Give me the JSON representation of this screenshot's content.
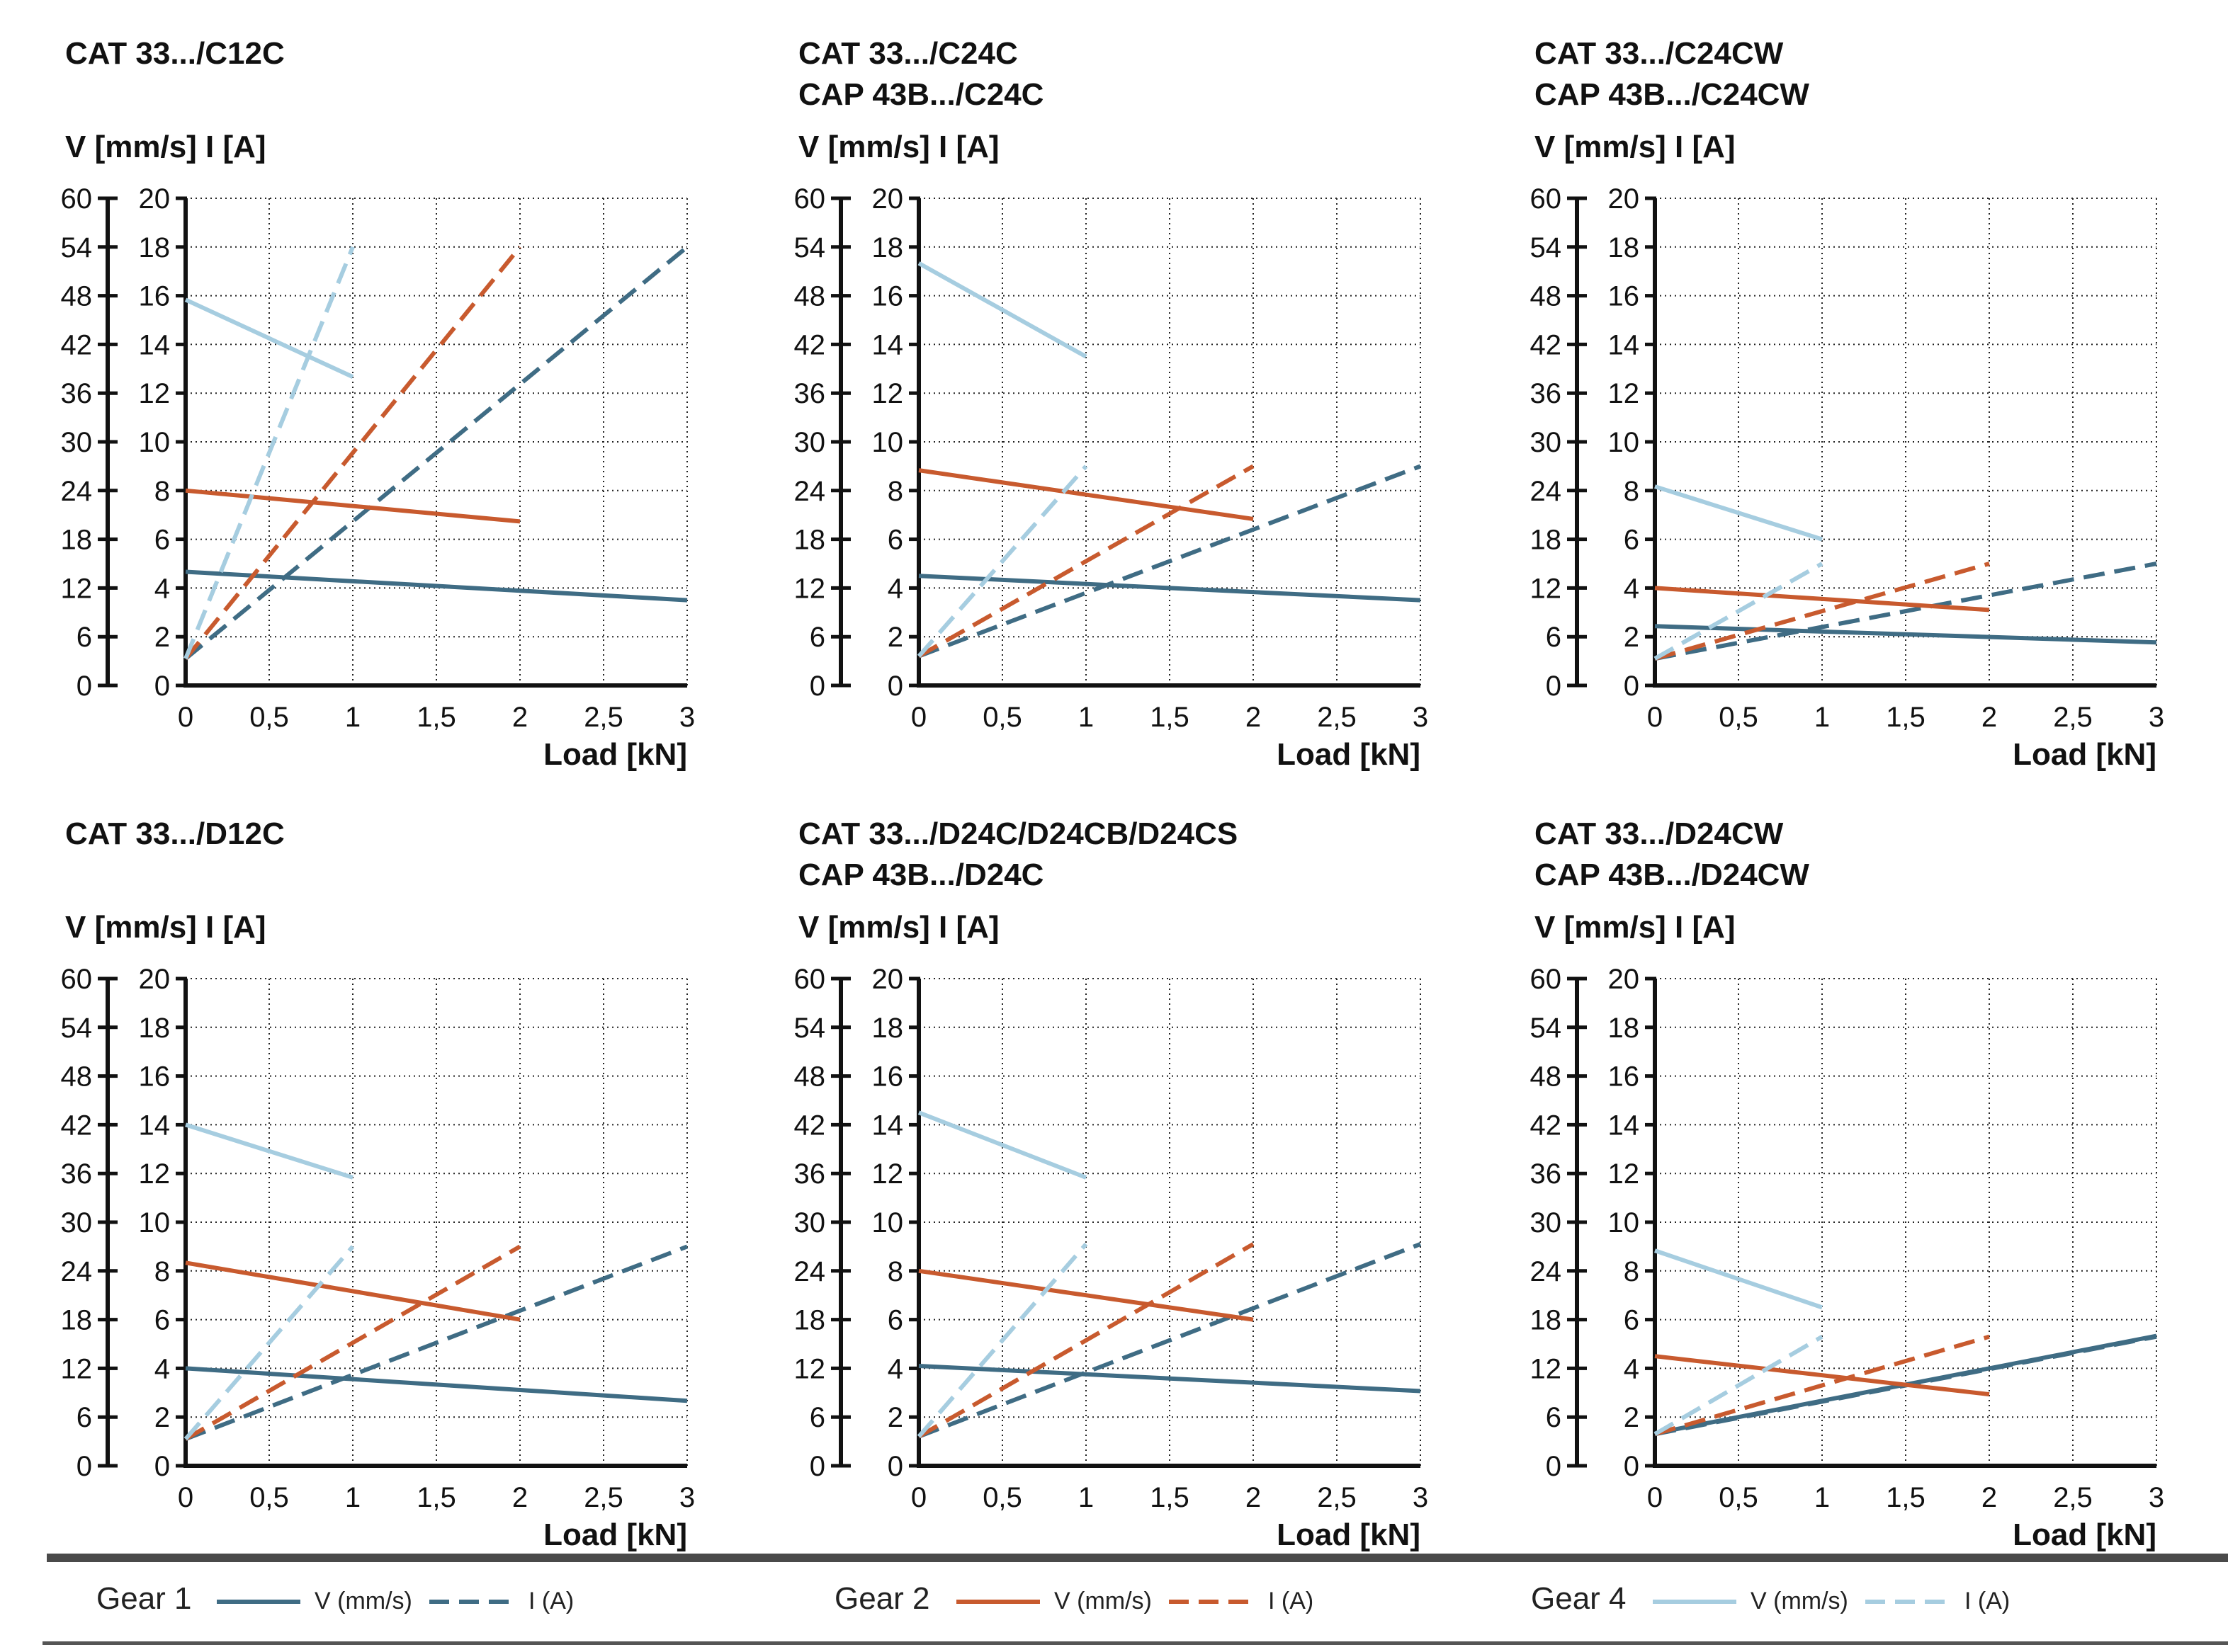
{
  "colors": {
    "gear1": "#3f6c84",
    "gear2": "#c85a2e",
    "gear4": "#a6cde0"
  },
  "legend": {
    "groups": [
      {
        "gear": "Gear 1",
        "v_label": "V (mm/s)",
        "i_label": "I (A)",
        "color_key": "gear1"
      },
      {
        "gear": "Gear 2",
        "v_label": "V (mm/s)",
        "i_label": "I (A)",
        "color_key": "gear2"
      },
      {
        "gear": "Gear 4",
        "v_label": "V (mm/s)",
        "i_label": "I (A)",
        "color_key": "gear4"
      }
    ]
  },
  "chart_data": [
    {
      "type": "line",
      "title": [
        "CAT 33.../C12C"
      ],
      "ylabel": "V [mm/s]  I [A]",
      "xlabel": "Load [kN]",
      "x_ticks": [
        "0",
        "0,5",
        "1",
        "1,5",
        "2",
        "2,5",
        "3"
      ],
      "xlim": [
        0,
        3
      ],
      "v_ticks": [
        "0",
        "6",
        "12",
        "18",
        "24",
        "30",
        "36",
        "42",
        "48",
        "54",
        "60"
      ],
      "v_lim": [
        0,
        60
      ],
      "i_ticks": [
        "0",
        "2",
        "4",
        "6",
        "8",
        "10",
        "12",
        "14",
        "16",
        "18",
        "20"
      ],
      "i_lim": [
        0,
        20
      ],
      "grid": true,
      "series": [
        {
          "name": "Gear 1 V (mm/s)",
          "gear": "gear1",
          "kind": "V",
          "x": [
            0,
            3
          ],
          "y": [
            14,
            10.5
          ]
        },
        {
          "name": "Gear 1 I (A)",
          "gear": "gear1",
          "kind": "I",
          "x": [
            0,
            3
          ],
          "y": [
            1.1,
            18
          ]
        },
        {
          "name": "Gear 2 V (mm/s)",
          "gear": "gear2",
          "kind": "V",
          "x": [
            0,
            2
          ],
          "y": [
            24,
            20.2
          ]
        },
        {
          "name": "Gear 2 I (A)",
          "gear": "gear2",
          "kind": "I",
          "x": [
            0,
            2
          ],
          "y": [
            1.1,
            18
          ]
        },
        {
          "name": "Gear 4 V (mm/s)",
          "gear": "gear4",
          "kind": "V",
          "x": [
            0,
            1
          ],
          "y": [
            47.5,
            38
          ]
        },
        {
          "name": "Gear 4 I (A)",
          "gear": "gear4",
          "kind": "I",
          "x": [
            0,
            1
          ],
          "y": [
            1.1,
            18
          ]
        }
      ]
    },
    {
      "type": "line",
      "title": [
        "CAT 33.../C24C",
        "CAP 43B.../C24C"
      ],
      "ylabel": "V [mm/s]  I [A]",
      "xlabel": "Load [kN]",
      "x_ticks": [
        "0",
        "0,5",
        "1",
        "1,5",
        "2",
        "2,5",
        "3"
      ],
      "xlim": [
        0,
        3
      ],
      "v_ticks": [
        "0",
        "6",
        "12",
        "18",
        "24",
        "30",
        "36",
        "42",
        "48",
        "54",
        "60"
      ],
      "v_lim": [
        0,
        60
      ],
      "i_ticks": [
        "0",
        "2",
        "4",
        "6",
        "8",
        "10",
        "12",
        "14",
        "16",
        "18",
        "20"
      ],
      "i_lim": [
        0,
        20
      ],
      "grid": true,
      "series": [
        {
          "name": "Gear 1 V (mm/s)",
          "gear": "gear1",
          "kind": "V",
          "x": [
            0,
            3
          ],
          "y": [
            13.5,
            10.5
          ]
        },
        {
          "name": "Gear 1 I (A)",
          "gear": "gear1",
          "kind": "I",
          "x": [
            0,
            3
          ],
          "y": [
            1.2,
            9
          ]
        },
        {
          "name": "Gear 2 V (mm/s)",
          "gear": "gear2",
          "kind": "V",
          "x": [
            0,
            2
          ],
          "y": [
            26.5,
            20.5
          ]
        },
        {
          "name": "Gear 2 I (A)",
          "gear": "gear2",
          "kind": "I",
          "x": [
            0,
            2
          ],
          "y": [
            1.2,
            9
          ]
        },
        {
          "name": "Gear 4 V (mm/s)",
          "gear": "gear4",
          "kind": "V",
          "x": [
            0,
            1
          ],
          "y": [
            52,
            40.5
          ]
        },
        {
          "name": "Gear 4 I (A)",
          "gear": "gear4",
          "kind": "I",
          "x": [
            0,
            1
          ],
          "y": [
            1.2,
            9
          ]
        }
      ]
    },
    {
      "type": "line",
      "title": [
        "CAT 33.../C24CW",
        "CAP 43B.../C24CW"
      ],
      "ylabel": "V [mm/s]  I [A]",
      "xlabel": "Load [kN]",
      "x_ticks": [
        "0",
        "0,5",
        "1",
        "1,5",
        "2",
        "2,5",
        "3"
      ],
      "xlim": [
        0,
        3
      ],
      "v_ticks": [
        "0",
        "6",
        "12",
        "18",
        "24",
        "30",
        "36",
        "42",
        "48",
        "54",
        "60"
      ],
      "v_lim": [
        0,
        60
      ],
      "i_ticks": [
        "0",
        "2",
        "4",
        "6",
        "8",
        "10",
        "12",
        "14",
        "16",
        "18",
        "20"
      ],
      "i_lim": [
        0,
        20
      ],
      "grid": true,
      "series": [
        {
          "name": "Gear 1 V (mm/s)",
          "gear": "gear1",
          "kind": "V",
          "x": [
            0,
            3
          ],
          "y": [
            7.3,
            5.3
          ]
        },
        {
          "name": "Gear 1 I (A)",
          "gear": "gear1",
          "kind": "I",
          "x": [
            0,
            3
          ],
          "y": [
            1.1,
            5
          ]
        },
        {
          "name": "Gear 2 V (mm/s)",
          "gear": "gear2",
          "kind": "V",
          "x": [
            0,
            2
          ],
          "y": [
            12,
            9.3
          ]
        },
        {
          "name": "Gear 2 I (A)",
          "gear": "gear2",
          "kind": "I",
          "x": [
            0,
            2
          ],
          "y": [
            1.1,
            5
          ]
        },
        {
          "name": "Gear 4 V (mm/s)",
          "gear": "gear4",
          "kind": "V",
          "x": [
            0,
            1
          ],
          "y": [
            24.5,
            18
          ]
        },
        {
          "name": "Gear 4 I (A)",
          "gear": "gear4",
          "kind": "I",
          "x": [
            0,
            1
          ],
          "y": [
            1.1,
            5
          ]
        }
      ]
    },
    {
      "type": "line",
      "title": [
        "CAT 33.../D12C"
      ],
      "ylabel": "V [mm/s]  I [A]",
      "xlabel": "Load [kN]",
      "x_ticks": [
        "0",
        "0,5",
        "1",
        "1,5",
        "2",
        "2,5",
        "3"
      ],
      "xlim": [
        0,
        3
      ],
      "v_ticks": [
        "0",
        "6",
        "12",
        "18",
        "24",
        "30",
        "36",
        "42",
        "48",
        "54",
        "60"
      ],
      "v_lim": [
        0,
        60
      ],
      "i_ticks": [
        "0",
        "2",
        "4",
        "6",
        "8",
        "10",
        "12",
        "14",
        "16",
        "18",
        "20"
      ],
      "i_lim": [
        0,
        20
      ],
      "grid": true,
      "series": [
        {
          "name": "Gear 1 V (mm/s)",
          "gear": "gear1",
          "kind": "V",
          "x": [
            0,
            3
          ],
          "y": [
            12,
            8
          ]
        },
        {
          "name": "Gear 1 I (A)",
          "gear": "gear1",
          "kind": "I",
          "x": [
            0,
            3
          ],
          "y": [
            1.1,
            9
          ]
        },
        {
          "name": "Gear 2 V (mm/s)",
          "gear": "gear2",
          "kind": "V",
          "x": [
            0,
            2
          ],
          "y": [
            25,
            18
          ]
        },
        {
          "name": "Gear 2 I (A)",
          "gear": "gear2",
          "kind": "I",
          "x": [
            0,
            2
          ],
          "y": [
            1.1,
            9
          ]
        },
        {
          "name": "Gear 4 V (mm/s)",
          "gear": "gear4",
          "kind": "V",
          "x": [
            0,
            1
          ],
          "y": [
            42,
            35.5
          ]
        },
        {
          "name": "Gear 4 I (A)",
          "gear": "gear4",
          "kind": "I",
          "x": [
            0,
            1
          ],
          "y": [
            1.1,
            9
          ]
        }
      ]
    },
    {
      "type": "line",
      "title": [
        "CAT 33.../D24C/D24CB/D24CS",
        "CAP 43B.../D24C"
      ],
      "ylabel": "V [mm/s]  I [A]",
      "xlabel": "Load [kN]",
      "x_ticks": [
        "0",
        "0,5",
        "1",
        "1,5",
        "2",
        "2,5",
        "3"
      ],
      "xlim": [
        0,
        3
      ],
      "v_ticks": [
        "0",
        "6",
        "12",
        "18",
        "24",
        "30",
        "36",
        "42",
        "48",
        "54",
        "60"
      ],
      "v_lim": [
        0,
        60
      ],
      "i_ticks": [
        "0",
        "2",
        "4",
        "6",
        "8",
        "10",
        "12",
        "14",
        "16",
        "18",
        "20"
      ],
      "i_lim": [
        0,
        20
      ],
      "grid": true,
      "series": [
        {
          "name": "Gear 1 V (mm/s)",
          "gear": "gear1",
          "kind": "V",
          "x": [
            0,
            3
          ],
          "y": [
            12.3,
            9.2
          ]
        },
        {
          "name": "Gear 1 I (A)",
          "gear": "gear1",
          "kind": "I",
          "x": [
            0,
            3
          ],
          "y": [
            1.2,
            9.1
          ]
        },
        {
          "name": "Gear 2 V (mm/s)",
          "gear": "gear2",
          "kind": "V",
          "x": [
            0,
            2
          ],
          "y": [
            24,
            18
          ]
        },
        {
          "name": "Gear 2 I (A)",
          "gear": "gear2",
          "kind": "I",
          "x": [
            0,
            2
          ],
          "y": [
            1.2,
            9.1
          ]
        },
        {
          "name": "Gear 4 V (mm/s)",
          "gear": "gear4",
          "kind": "V",
          "x": [
            0,
            1
          ],
          "y": [
            43.5,
            35.5
          ]
        },
        {
          "name": "Gear 4 I (A)",
          "gear": "gear4",
          "kind": "I",
          "x": [
            0,
            1
          ],
          "y": [
            1.2,
            9.1
          ]
        }
      ]
    },
    {
      "type": "line",
      "title": [
        "CAT 33.../D24CW",
        "CAP 43B.../D24CW"
      ],
      "ylabel": "V [mm/s]  I [A]",
      "xlabel": "Load [kN]",
      "x_ticks": [
        "0",
        "0,5",
        "1",
        "1,5",
        "2",
        "2,5",
        "3"
      ],
      "xlim": [
        0,
        3
      ],
      "v_ticks": [
        "0",
        "6",
        "12",
        "18",
        "24",
        "30",
        "36",
        "42",
        "48",
        "54",
        "60"
      ],
      "v_lim": [
        0,
        60
      ],
      "i_ticks": [
        "0",
        "2",
        "4",
        "6",
        "8",
        "10",
        "12",
        "14",
        "16",
        "18",
        "20"
      ],
      "i_lim": [
        0,
        20
      ],
      "grid": true,
      "series": [
        {
          "name": "Gear 1 V (mm/s)",
          "gear": "gear1",
          "kind": "V",
          "x": [
            0,
            3
          ],
          "y": [
            4,
            16
          ]
        },
        {
          "name": "Gear 1 I (A)",
          "gear": "gear1",
          "kind": "I",
          "x": [
            0,
            3
          ],
          "y": [
            1.3,
            5.3
          ]
        },
        {
          "name": "Gear 2 V (mm/s)",
          "gear": "gear2",
          "kind": "V",
          "x": [
            0,
            2
          ],
          "y": [
            13.5,
            8.8
          ]
        },
        {
          "name": "Gear 2 I (A)",
          "gear": "gear2",
          "kind": "I",
          "x": [
            0,
            2
          ],
          "y": [
            1.3,
            5.3
          ]
        },
        {
          "name": "Gear 4 V (mm/s)",
          "gear": "gear4",
          "kind": "V",
          "x": [
            0,
            1
          ],
          "y": [
            26.5,
            19.5
          ]
        },
        {
          "name": "Gear 4 I (A)",
          "gear": "gear4",
          "kind": "I",
          "x": [
            0,
            1
          ],
          "y": [
            1.3,
            5.3
          ]
        }
      ]
    }
  ]
}
